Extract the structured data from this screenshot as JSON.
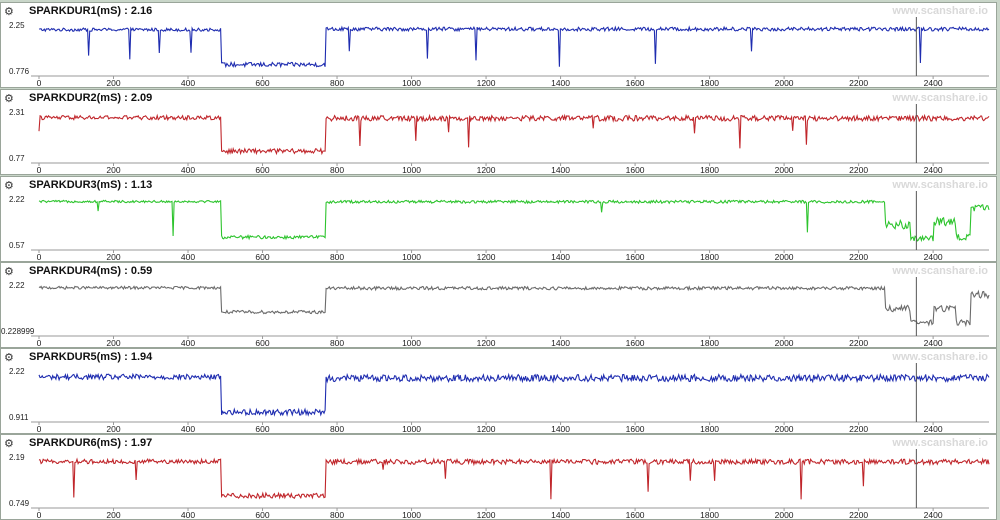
{
  "watermark": "www.scanshare.io",
  "icon": "gears-icon",
  "chart_data": [
    {
      "type": "line",
      "title": "SPARKDUR1(mS) : 2.16",
      "color": "#1f2db0",
      "ylim": [
        0.776,
        2.25
      ],
      "ytick_labels": [
        "2.25",
        "0.776"
      ],
      "xlim": [
        0,
        2550
      ],
      "xticks": [
        0,
        200,
        400,
        600,
        800,
        1000,
        1200,
        1400,
        1600,
        1800,
        2000,
        2200,
        2400
      ],
      "cursor_x": 2355,
      "segments": [
        {
          "x_from": 0,
          "x_to": 490,
          "level": 2.1,
          "noise": 0.05,
          "spikes": 0.35
        },
        {
          "x_from": 490,
          "x_to": 770,
          "level": 0.98,
          "noise": 0.07,
          "spikes": 0.0
        },
        {
          "x_from": 770,
          "x_to": 2550,
          "level": 2.12,
          "noise": 0.06,
          "spikes": 0.3
        }
      ]
    },
    {
      "type": "line",
      "title": "SPARKDUR2(mS) : 2.09",
      "color": "#c0262b",
      "ylim": [
        0.77,
        2.31
      ],
      "ytick_labels": [
        "2.31",
        "0.77"
      ],
      "xlim": [
        0,
        2550
      ],
      "xticks": [
        0,
        200,
        400,
        600,
        800,
        1000,
        1200,
        1400,
        1600,
        1800,
        2000,
        2200,
        2400
      ],
      "cursor_x": 2355,
      "segments": [
        {
          "x_from": 0,
          "x_to": 490,
          "level": 2.12,
          "noise": 0.07,
          "spikes": 0.6
        },
        {
          "x_from": 490,
          "x_to": 770,
          "level": 1.0,
          "noise": 0.08,
          "spikes": 0.0
        },
        {
          "x_from": 770,
          "x_to": 2550,
          "level": 2.1,
          "noise": 0.09,
          "spikes": 0.7
        }
      ]
    },
    {
      "type": "line",
      "title": "SPARKDUR3(mS) : 1.13",
      "color": "#2ec42e",
      "ylim": [
        0.57,
        2.22
      ],
      "ytick_labels": [
        "2.22",
        "0.57"
      ],
      "xlim": [
        0,
        2550
      ],
      "xticks": [
        0,
        200,
        400,
        600,
        800,
        1000,
        1200,
        1400,
        1600,
        1800,
        2000,
        2200,
        2400
      ],
      "cursor_x": 2355,
      "segments": [
        {
          "x_from": 0,
          "x_to": 490,
          "level": 2.13,
          "noise": 0.04,
          "spikes": 0.2
        },
        {
          "x_from": 490,
          "x_to": 770,
          "level": 0.85,
          "noise": 0.06,
          "spikes": 0.0
        },
        {
          "x_from": 770,
          "x_to": 2270,
          "level": 2.12,
          "noise": 0.05,
          "spikes": 0.2
        },
        {
          "x_from": 2270,
          "x_to": 2340,
          "level": 1.3,
          "noise": 0.15,
          "spikes": 0.0
        },
        {
          "x_from": 2340,
          "x_to": 2400,
          "level": 0.8,
          "noise": 0.12,
          "spikes": 0.0
        },
        {
          "x_from": 2400,
          "x_to": 2460,
          "level": 1.4,
          "noise": 0.15,
          "spikes": 0.0
        },
        {
          "x_from": 2460,
          "x_to": 2500,
          "level": 0.85,
          "noise": 0.12,
          "spikes": 0.0
        },
        {
          "x_from": 2500,
          "x_to": 2550,
          "level": 1.9,
          "noise": 0.12,
          "spikes": 0.0
        }
      ]
    },
    {
      "type": "line",
      "title": "SPARKDUR4(mS) : 0.59",
      "color": "#6b6b6b",
      "ylim": [
        0.228999,
        2.22
      ],
      "ytick_labels": [
        "2.22",
        "0.228999"
      ],
      "xlim": [
        0,
        2550
      ],
      "xticks": [
        0,
        200,
        400,
        600,
        800,
        1000,
        1200,
        1400,
        1600,
        1800,
        2000,
        2200,
        2400
      ],
      "cursor_x": 2355,
      "segments": [
        {
          "x_from": 0,
          "x_to": 490,
          "level": 2.1,
          "noise": 0.06,
          "spikes": 0.0
        },
        {
          "x_from": 490,
          "x_to": 770,
          "level": 1.05,
          "noise": 0.07,
          "spikes": 0.0
        },
        {
          "x_from": 770,
          "x_to": 2270,
          "level": 2.08,
          "noise": 0.07,
          "spikes": 0.0
        },
        {
          "x_from": 2270,
          "x_to": 2340,
          "level": 1.2,
          "noise": 0.15,
          "spikes": 0.0
        },
        {
          "x_from": 2340,
          "x_to": 2400,
          "level": 0.6,
          "noise": 0.12,
          "spikes": 0.0
        },
        {
          "x_from": 2400,
          "x_to": 2460,
          "level": 1.2,
          "noise": 0.15,
          "spikes": 0.0
        },
        {
          "x_from": 2460,
          "x_to": 2500,
          "level": 0.6,
          "noise": 0.12,
          "spikes": 0.0
        },
        {
          "x_from": 2500,
          "x_to": 2550,
          "level": 1.8,
          "noise": 0.15,
          "spikes": 0.0
        }
      ]
    },
    {
      "type": "line",
      "title": "SPARKDUR5(mS) : 1.94",
      "color": "#1f2db0",
      "ylim": [
        0.911,
        2.22
      ],
      "ytick_labels": [
        "2.22",
        "0.911"
      ],
      "xlim": [
        0,
        2550
      ],
      "xticks": [
        0,
        200,
        400,
        600,
        800,
        1000,
        1200,
        1400,
        1600,
        1800,
        2000,
        2200,
        2400
      ],
      "cursor_x": 2355,
      "segments": [
        {
          "x_from": 0,
          "x_to": 490,
          "level": 2.05,
          "noise": 0.08,
          "spikes": 0.0
        },
        {
          "x_from": 490,
          "x_to": 770,
          "level": 1.05,
          "noise": 0.08,
          "spikes": 0.0
        },
        {
          "x_from": 770,
          "x_to": 2550,
          "level": 2.02,
          "noise": 0.1,
          "spikes": 0.0
        }
      ]
    },
    {
      "type": "line",
      "title": "SPARKDUR6(mS) : 1.97",
      "color": "#c0262b",
      "ylim": [
        0.749,
        2.19
      ],
      "ytick_labels": [
        "2.19",
        "0.749"
      ],
      "xlim": [
        0,
        2550
      ],
      "xticks": [
        0,
        200,
        400,
        600,
        800,
        1000,
        1200,
        1400,
        1600,
        1800,
        2000,
        2200,
        2400
      ],
      "cursor_x": 2355,
      "segments": [
        {
          "x_from": 0,
          "x_to": 490,
          "level": 2.05,
          "noise": 0.07,
          "spikes": 0.5
        },
        {
          "x_from": 490,
          "x_to": 770,
          "level": 0.98,
          "noise": 0.08,
          "spikes": 0.0
        },
        {
          "x_from": 770,
          "x_to": 2550,
          "level": 2.04,
          "noise": 0.08,
          "spikes": 0.5
        }
      ]
    }
  ]
}
